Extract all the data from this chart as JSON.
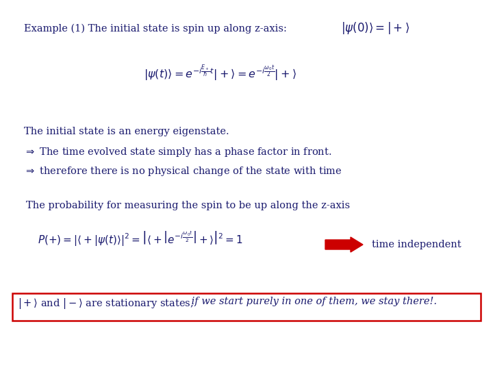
{
  "bg_color": "#ffffff",
  "dark": "#1a1a6e",
  "red": "#cc0000",
  "figsize": [
    7.2,
    5.4
  ],
  "dpi": 100,
  "title": "Example (1) The initial state is spin up along z-axis:",
  "eq1": "$|\\psi(0)\\rangle = |+\\rangle$",
  "eq2": "$|\\psi(t)\\rangle = e^{-i\\frac{E_+}{\\hbar}t}|+\\rangle = e^{-i\\frac{\\omega_0 t}{2}}|+\\rangle$",
  "text1": "The initial state is an energy eigenstate.",
  "text2": "$\\Rightarrow$ The time evolved state simply has a phase factor in front.",
  "text3": "$\\Rightarrow$ therefore there is no physical change of the state with time",
  "text4": "The probability for measuring the spin to be up along the z-axis",
  "eq3a": "$P(+) = |\\langle +|\\psi(t)\\rangle|^2 = \\left|\\langle +\\left|e^{-i\\frac{\\omega_0 t}{2}}\\right|+\\rangle\\right|^2 = 1$",
  "arrow_text": "time independent",
  "bottom1": "$|+\\rangle$ and $|-\\rangle$ are stationary states,",
  "bottom2": " if we start purely in one of them, we stay there!."
}
